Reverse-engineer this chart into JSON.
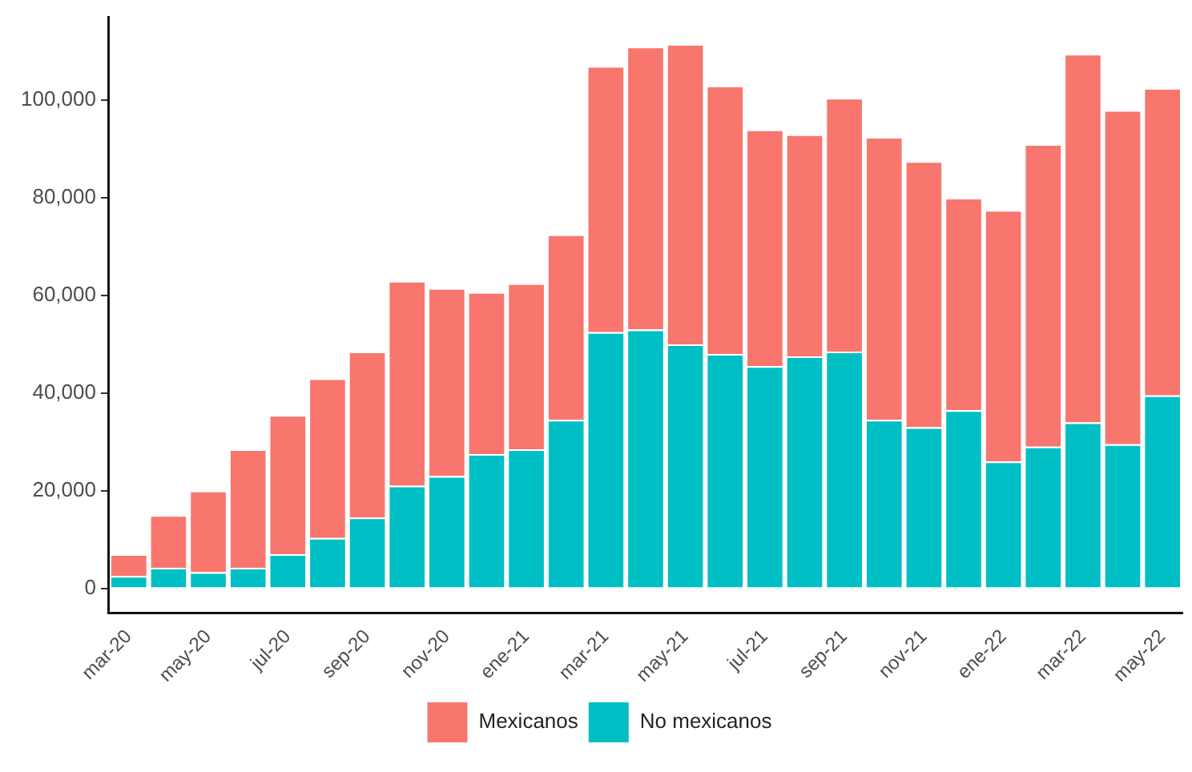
{
  "chart_data": {
    "type": "bar",
    "stacked": true,
    "categories": [
      "mar-20",
      null,
      "may-20",
      null,
      "jul-20",
      null,
      "sep-20",
      null,
      "nov-20",
      null,
      "ene-21",
      null,
      "mar-21",
      null,
      "may-21",
      null,
      "jul-21",
      null,
      "sep-21",
      null,
      "nov-21",
      null,
      "ene-22",
      null,
      "mar-22",
      null,
      "may-22"
    ],
    "series": [
      {
        "name": "No mexicanos",
        "color": "#00bfc4",
        "values": [
          2500,
          4200,
          3300,
          4200,
          7000,
          10300,
          14500,
          21000,
          23000,
          27500,
          28500,
          34500,
          52500,
          53000,
          50000,
          48000,
          45500,
          47500,
          48500,
          34500,
          33000,
          36500,
          26000,
          29000,
          34000,
          29500,
          39500
        ]
      },
      {
        "name": "Mexicanos",
        "color": "#f8766d",
        "values": [
          4500,
          10800,
          16700,
          24300,
          28500,
          32700,
          34000,
          42000,
          38500,
          33200,
          34000,
          38000,
          54500,
          58000,
          61500,
          55000,
          48500,
          45500,
          52000,
          58000,
          54500,
          43500,
          51500,
          62000,
          75500,
          68500,
          63000
        ]
      }
    ],
    "ylim": [
      -5000,
      117000
    ],
    "yticks": [
      {
        "value": 0,
        "label": "0"
      },
      {
        "value": 20000,
        "label": "20,000"
      },
      {
        "value": 40000,
        "label": "40,000"
      },
      {
        "value": 60000,
        "label": "60,000"
      },
      {
        "value": 80000,
        "label": "80,000"
      },
      {
        "value": 100000,
        "label": "100,000"
      }
    ],
    "grid": false,
    "legend": "bottom"
  }
}
